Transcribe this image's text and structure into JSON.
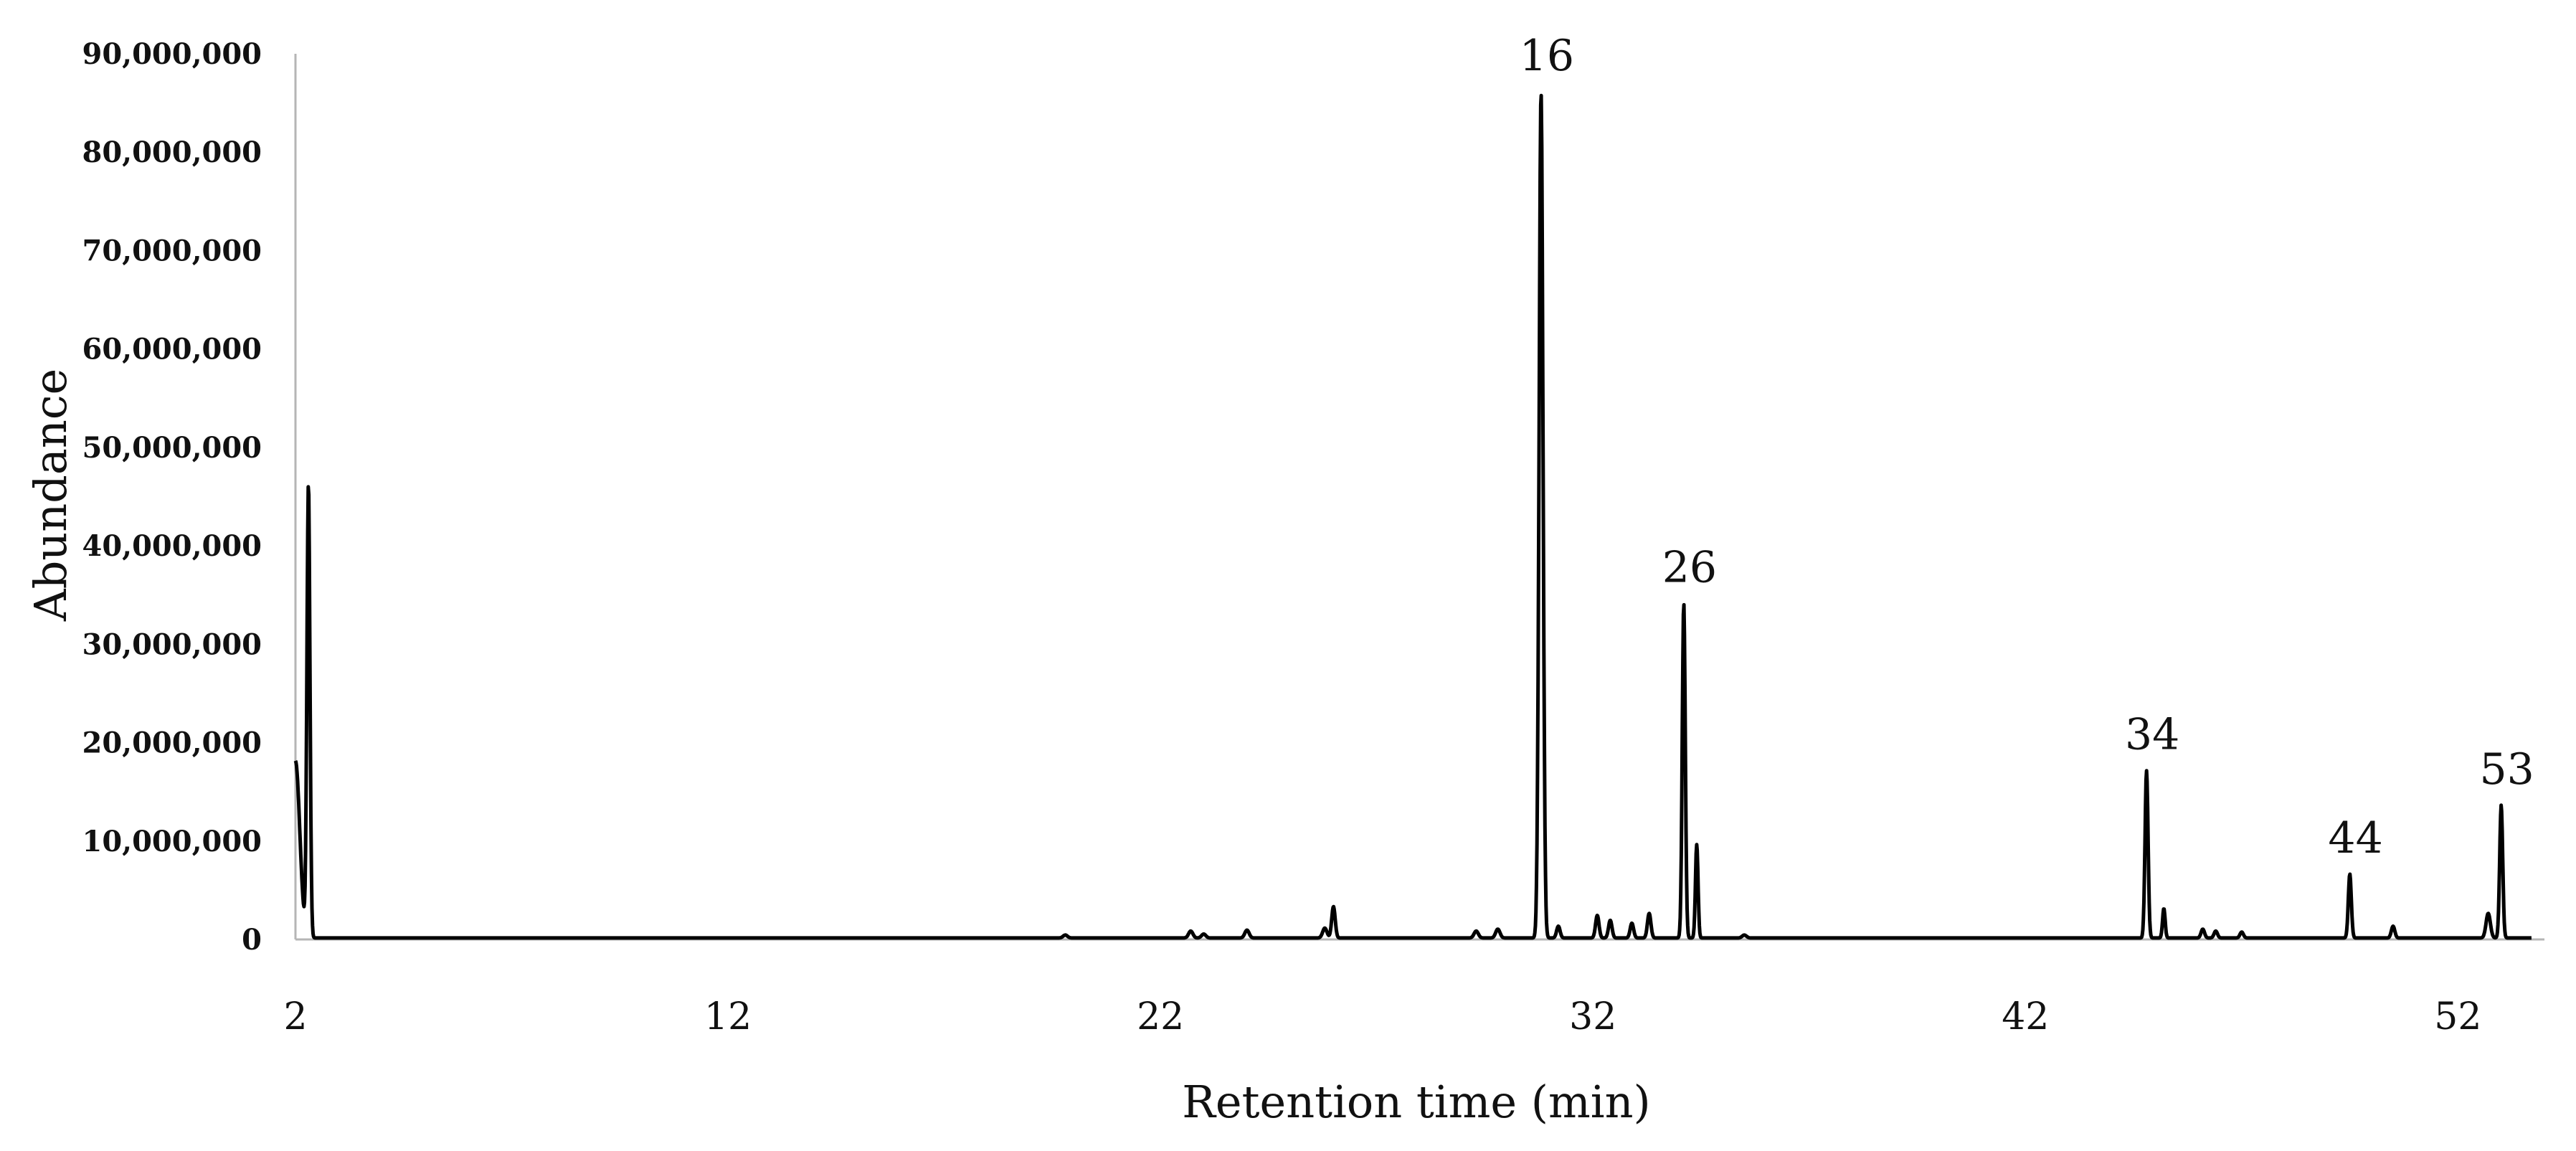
{
  "chart_data": {
    "type": "line",
    "title": "",
    "xlabel": "Retention time (min)",
    "ylabel": "Abundance",
    "xlim": [
      2,
      54
    ],
    "ylim": [
      0,
      90000000
    ],
    "x_ticks": [
      2,
      12,
      22,
      32,
      42,
      52
    ],
    "x_tick_labels": [
      "2",
      "12",
      "22",
      "32",
      "42",
      "52"
    ],
    "y_ticks": [
      0,
      10000000,
      20000000,
      30000000,
      40000000,
      50000000,
      60000000,
      70000000,
      80000000,
      90000000
    ],
    "y_tick_labels": [
      "0",
      "10,000,000",
      "20,000,000",
      "30,000,000",
      "40,000,000",
      "50,000,000",
      "60,000,000",
      "70,000,000",
      "80,000,000",
      "90,000,000"
    ],
    "grid": false,
    "legend": "none",
    "line_color": "#000000",
    "peaks": [
      {
        "x": 2.0,
        "y": 18000000,
        "w": 0.1
      },
      {
        "x": 2.3,
        "y": 46000000,
        "w": 0.035
      },
      {
        "x": 19.8,
        "y": 300000,
        "w": 0.05
      },
      {
        "x": 22.7,
        "y": 700000,
        "w": 0.05
      },
      {
        "x": 23.0,
        "y": 400000,
        "w": 0.05
      },
      {
        "x": 24.0,
        "y": 800000,
        "w": 0.05
      },
      {
        "x": 25.8,
        "y": 1000000,
        "w": 0.05
      },
      {
        "x": 26.0,
        "y": 3200000,
        "w": 0.04
      },
      {
        "x": 29.3,
        "y": 700000,
        "w": 0.05
      },
      {
        "x": 29.8,
        "y": 900000,
        "w": 0.05
      },
      {
        "x": 30.8,
        "y": 86000000,
        "w": 0.045
      },
      {
        "x": 31.2,
        "y": 1200000,
        "w": 0.04
      },
      {
        "x": 32.1,
        "y": 2300000,
        "w": 0.04
      },
      {
        "x": 32.4,
        "y": 1800000,
        "w": 0.04
      },
      {
        "x": 32.9,
        "y": 1500000,
        "w": 0.04
      },
      {
        "x": 33.3,
        "y": 2500000,
        "w": 0.04
      },
      {
        "x": 34.1,
        "y": 34000000,
        "w": 0.035
      },
      {
        "x": 34.4,
        "y": 9500000,
        "w": 0.03
      },
      {
        "x": 35.5,
        "y": 300000,
        "w": 0.05
      },
      {
        "x": 44.8,
        "y": 17000000,
        "w": 0.035
      },
      {
        "x": 45.2,
        "y": 3000000,
        "w": 0.03
      },
      {
        "x": 46.1,
        "y": 900000,
        "w": 0.04
      },
      {
        "x": 46.4,
        "y": 700000,
        "w": 0.04
      },
      {
        "x": 47.0,
        "y": 600000,
        "w": 0.04
      },
      {
        "x": 49.5,
        "y": 6500000,
        "w": 0.035
      },
      {
        "x": 50.5,
        "y": 1200000,
        "w": 0.04
      },
      {
        "x": 52.7,
        "y": 2500000,
        "w": 0.05
      },
      {
        "x": 53.0,
        "y": 13500000,
        "w": 0.035
      }
    ],
    "annotations": [
      {
        "text": "16",
        "x": 30.8,
        "y": 86000000
      },
      {
        "text": "26",
        "x": 34.1,
        "y": 34000000
      },
      {
        "text": "34",
        "x": 44.8,
        "y": 17000000
      },
      {
        "text": "44",
        "x": 49.5,
        "y": 6500000
      },
      {
        "text": "53",
        "x": 53.0,
        "y": 13500000
      }
    ]
  }
}
